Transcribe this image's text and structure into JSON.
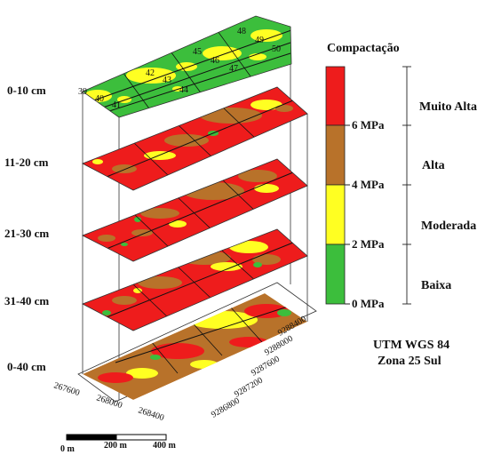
{
  "depth_labels": [
    "0-10 cm",
    "11-20 cm",
    "21-30 cm",
    "31-40 cm",
    "0-40 cm"
  ],
  "legend": {
    "title": "Compactação",
    "ticks": [
      "6 MPa",
      "4 MPa",
      "2 MPa",
      "0 MPa"
    ],
    "classes": [
      "Muito Alta",
      "Alta",
      "Moderada",
      "Baixa"
    ],
    "colors": {
      "muito_alta": "#ee1c1c",
      "alta": "#b8722a",
      "moderada": "#ffff22",
      "baixa": "#3cbe3c"
    }
  },
  "plot_numbers": [
    "39",
    "40",
    "41",
    "42",
    "43",
    "44",
    "45",
    "46",
    "47",
    "48",
    "49",
    "50"
  ],
  "easting_ticks": [
    "267600",
    "268000",
    "268400"
  ],
  "northing_ticks": [
    "9288400",
    "9288000",
    "9287600",
    "9287200",
    "9286800"
  ],
  "projection": {
    "line1": "UTM WGS 84",
    "line2": "Zona 25 Sul"
  },
  "scale_bar": [
    "0 m",
    "200 m",
    "400 m"
  ]
}
